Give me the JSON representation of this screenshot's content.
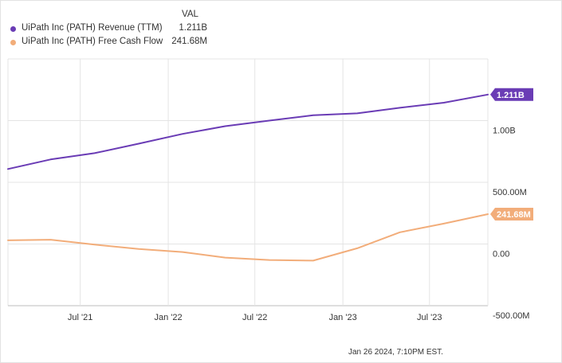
{
  "legend": {
    "header": "VAL",
    "items": [
      {
        "name": "UiPath Inc (PATH) Revenue (TTM)",
        "value": "1.211B",
        "color": "#6a3cb5"
      },
      {
        "name": "UiPath Inc (PATH) Free Cash Flow",
        "value": "241.68M",
        "color": "#f2ad7a"
      }
    ]
  },
  "footer": {
    "timestamp": "Jan 26 2024, 7:10PM EST."
  },
  "chart_data": {
    "type": "line",
    "ylim": [
      -500,
      1500
    ],
    "yticks": [
      {
        "value": 1000,
        "label": "1.00B"
      },
      {
        "value": 500,
        "label": "500.00M"
      },
      {
        "value": 0,
        "label": "0.00"
      },
      {
        "value": -500,
        "label": "-500.00M"
      }
    ],
    "xlim": [
      "2021-01-31",
      "2023-10-31"
    ],
    "xticks": [
      {
        "date": "2021-07-01",
        "label": "Jul '21"
      },
      {
        "date": "2022-01-01",
        "label": "Jan '22"
      },
      {
        "date": "2022-07-01",
        "label": "Jul '22"
      },
      {
        "date": "2023-01-01",
        "label": "Jan '23"
      },
      {
        "date": "2023-07-01",
        "label": "Jul '23"
      }
    ],
    "series": [
      {
        "name": "UiPath Inc (PATH) Revenue (TTM)",
        "color": "#6a3cb5",
        "end_label": "1.211B",
        "points": [
          {
            "x": "2021-01-31",
            "y": 608
          },
          {
            "x": "2021-04-30",
            "y": 685
          },
          {
            "x": "2021-07-31",
            "y": 736
          },
          {
            "x": "2021-10-31",
            "y": 813
          },
          {
            "x": "2022-01-31",
            "y": 892
          },
          {
            "x": "2022-04-30",
            "y": 955
          },
          {
            "x": "2022-07-31",
            "y": 1000
          },
          {
            "x": "2022-10-31",
            "y": 1043
          },
          {
            "x": "2023-01-31",
            "y": 1059
          },
          {
            "x": "2023-04-30",
            "y": 1104
          },
          {
            "x": "2023-07-31",
            "y": 1145
          },
          {
            "x": "2023-10-31",
            "y": 1211
          }
        ]
      },
      {
        "name": "UiPath Inc (PATH) Free Cash Flow",
        "color": "#f2ad7a",
        "end_label": "241.68M",
        "points": [
          {
            "x": "2021-01-31",
            "y": 30
          },
          {
            "x": "2021-04-30",
            "y": 35
          },
          {
            "x": "2021-07-31",
            "y": -5
          },
          {
            "x": "2021-10-31",
            "y": -40
          },
          {
            "x": "2022-01-31",
            "y": -65
          },
          {
            "x": "2022-04-30",
            "y": -110
          },
          {
            "x": "2022-07-31",
            "y": -130
          },
          {
            "x": "2022-10-31",
            "y": -135
          },
          {
            "x": "2023-01-31",
            "y": -35
          },
          {
            "x": "2023-04-30",
            "y": 95
          },
          {
            "x": "2023-07-31",
            "y": 165
          },
          {
            "x": "2023-10-31",
            "y": 241.68
          }
        ]
      }
    ],
    "grid": true,
    "legend_position": "top-left"
  }
}
